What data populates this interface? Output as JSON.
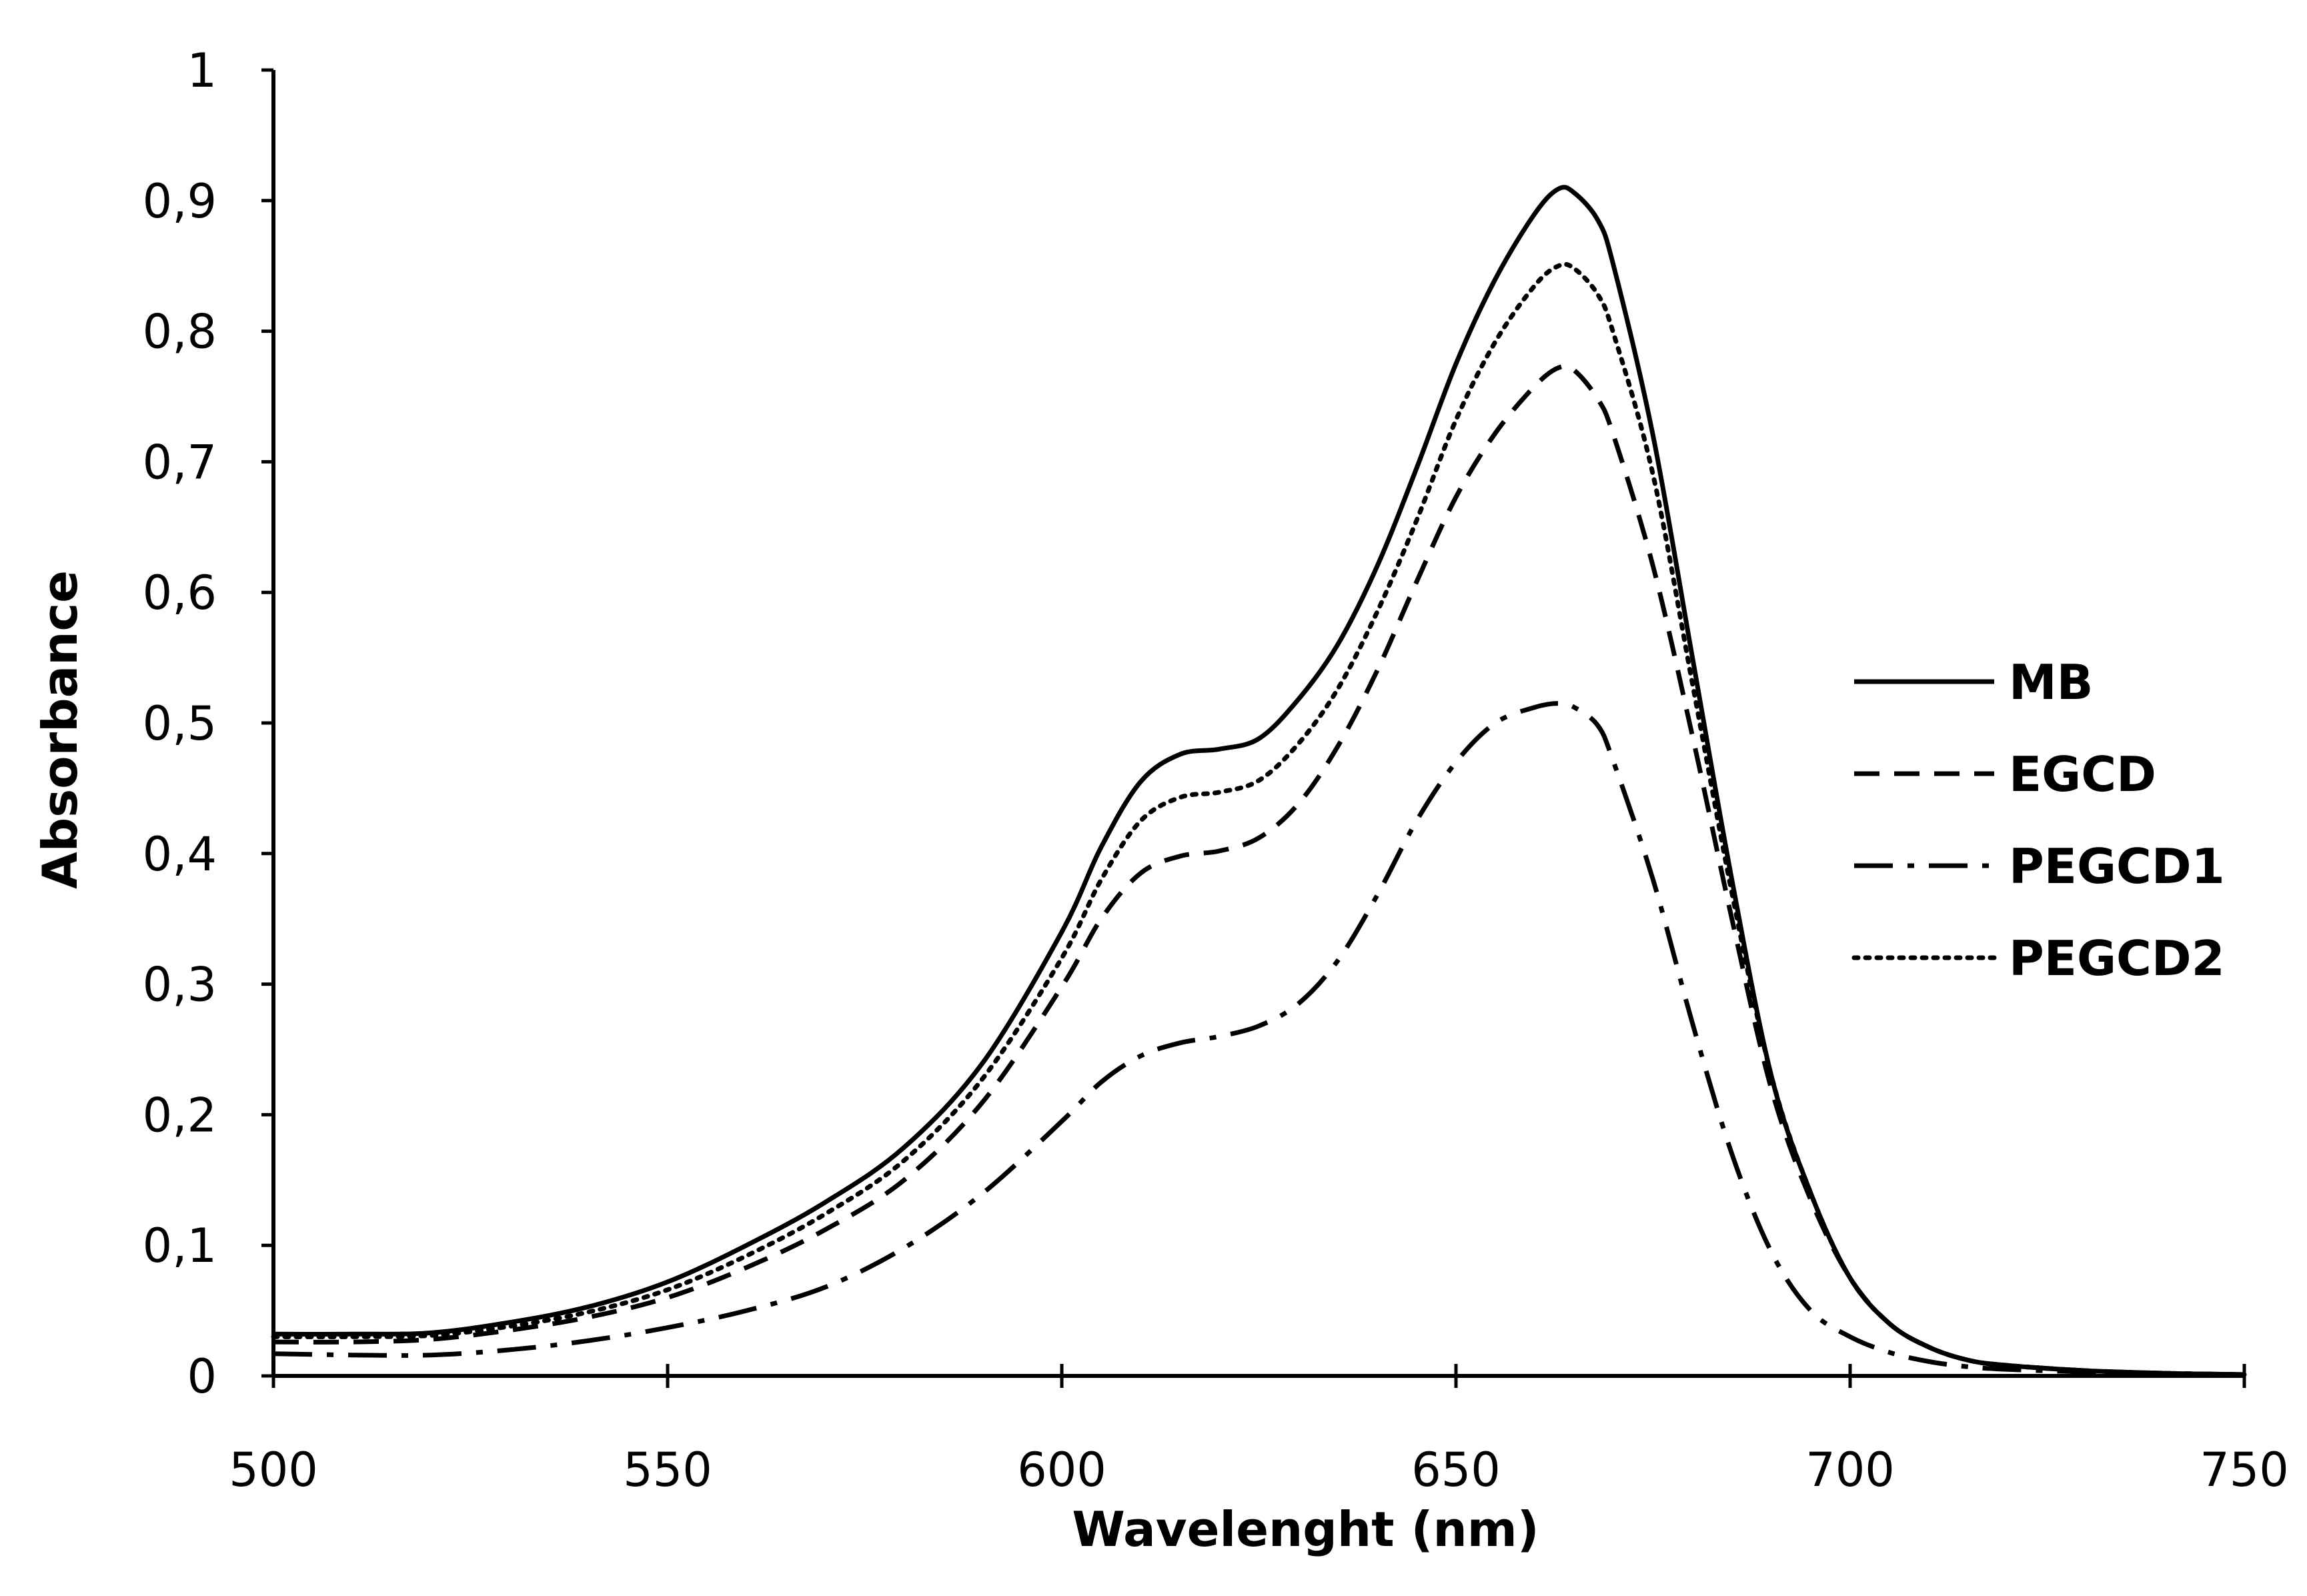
{
  "chart_data": {
    "type": "line",
    "title": "",
    "xlabel": "Wavelenght (nm)",
    "ylabel": "Absorbance",
    "xlim": [
      500,
      750
    ],
    "ylim": [
      0,
      1
    ],
    "grid": false,
    "legend_position": "right",
    "x_ticks": [
      500,
      550,
      600,
      650,
      700,
      750
    ],
    "x_tick_labels": [
      "500",
      "550",
      "600",
      "650",
      "700",
      "750"
    ],
    "y_ticks": [
      0,
      0.1,
      0.2,
      0.3,
      0.4,
      0.5,
      0.6,
      0.7,
      0.8,
      0.9,
      1
    ],
    "y_tick_labels": [
      "0",
      "0,1",
      "0,2",
      "0,3",
      "0,4",
      "0,5",
      "0,6",
      "0,7",
      "0,8",
      "0,9",
      "1"
    ],
    "series": [
      {
        "name": "MB",
        "style": "solid",
        "color": "#000000",
        "x": [
          500,
          510,
          520,
          530,
          540,
          550,
          560,
          570,
          580,
          590,
          600,
          605,
          610,
          615,
          620,
          625,
          630,
          635,
          640,
          645,
          650,
          655,
          660,
          663,
          665,
          668,
          670,
          675,
          680,
          685,
          690,
          695,
          700,
          705,
          710,
          715,
          720,
          730,
          740,
          750
        ],
        "y": [
          0.032,
          0.032,
          0.033,
          0.041,
          0.053,
          0.072,
          0.1,
          0.133,
          0.175,
          0.24,
          0.34,
          0.405,
          0.455,
          0.476,
          0.48,
          0.488,
          0.518,
          0.56,
          0.62,
          0.695,
          0.775,
          0.84,
          0.89,
          0.909,
          0.906,
          0.885,
          0.85,
          0.72,
          0.55,
          0.38,
          0.23,
          0.14,
          0.075,
          0.04,
          0.022,
          0.012,
          0.008,
          0.004,
          0.002,
          0.001
        ]
      },
      {
        "name": "EGCD",
        "style": "dashed",
        "color": "#000000",
        "x": [
          500,
          510,
          520,
          530,
          540,
          550,
          560,
          570,
          580,
          590,
          600,
          605,
          610,
          615,
          620,
          625,
          630,
          635,
          640,
          645,
          650,
          655,
          660,
          663,
          665,
          668,
          670,
          675,
          680,
          685,
          690,
          695,
          700,
          705,
          710,
          715,
          720,
          730,
          740,
          750
        ],
        "y": [
          0.026,
          0.026,
          0.028,
          0.035,
          0.045,
          0.06,
          0.083,
          0.112,
          0.15,
          0.21,
          0.298,
          0.35,
          0.385,
          0.398,
          0.402,
          0.412,
          0.438,
          0.482,
          0.54,
          0.608,
          0.673,
          0.722,
          0.758,
          0.772,
          0.77,
          0.748,
          0.72,
          0.62,
          0.49,
          0.35,
          0.22,
          0.135,
          0.075,
          0.04,
          0.022,
          0.012,
          0.008,
          0.004,
          0.002,
          0.001
        ]
      },
      {
        "name": "PEGCD1",
        "style": "dashdot",
        "color": "#000000",
        "x": [
          500,
          510,
          520,
          530,
          540,
          550,
          560,
          570,
          580,
          590,
          600,
          605,
          610,
          615,
          620,
          625,
          630,
          635,
          640,
          645,
          650,
          655,
          660,
          663,
          665,
          668,
          670,
          675,
          680,
          685,
          690,
          695,
          700,
          705,
          710,
          715,
          720,
          730,
          740,
          750
        ],
        "y": [
          0.017,
          0.016,
          0.016,
          0.02,
          0.027,
          0.037,
          0.05,
          0.068,
          0.098,
          0.14,
          0.195,
          0.225,
          0.245,
          0.255,
          0.26,
          0.268,
          0.285,
          0.318,
          0.368,
          0.425,
          0.47,
          0.5,
          0.512,
          0.515,
          0.512,
          0.498,
          0.47,
          0.38,
          0.27,
          0.17,
          0.095,
          0.05,
          0.03,
          0.018,
          0.011,
          0.007,
          0.005,
          0.003,
          0.002,
          0.001
        ]
      },
      {
        "name": "PEGCD2",
        "style": "dotted",
        "color": "#000000",
        "x": [
          500,
          510,
          520,
          530,
          540,
          550,
          560,
          570,
          580,
          590,
          600,
          605,
          610,
          615,
          620,
          625,
          630,
          635,
          640,
          645,
          650,
          655,
          660,
          663,
          665,
          668,
          670,
          675,
          680,
          685,
          690,
          695,
          700,
          705,
          710,
          715,
          720,
          730,
          740,
          750
        ],
        "y": [
          0.03,
          0.03,
          0.031,
          0.038,
          0.049,
          0.066,
          0.092,
          0.124,
          0.165,
          0.228,
          0.32,
          0.38,
          0.425,
          0.443,
          0.447,
          0.456,
          0.484,
          0.526,
          0.585,
          0.655,
          0.732,
          0.792,
          0.835,
          0.85,
          0.848,
          0.828,
          0.798,
          0.69,
          0.53,
          0.37,
          0.23,
          0.14,
          0.075,
          0.04,
          0.022,
          0.012,
          0.008,
          0.004,
          0.002,
          0.001
        ]
      }
    ]
  }
}
